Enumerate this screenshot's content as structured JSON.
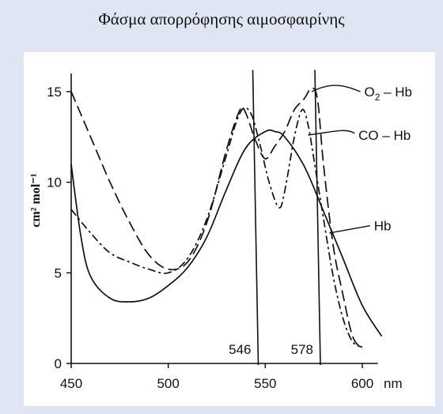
{
  "title": "Φάσμα απορρόφησης αιμοσφαιρίνης",
  "chart_data": {
    "type": "line",
    "ylabel": "cm² mol⁻¹",
    "x_unit": "nm",
    "xlim": [
      450,
      620
    ],
    "ylim": [
      0,
      16
    ],
    "x_ticks": [
      450,
      500,
      550,
      600
    ],
    "y_ticks": [
      0,
      5,
      10,
      15
    ],
    "x_tick_labels": [
      "450",
      "500",
      "550",
      "600"
    ],
    "y_tick_labels": [
      "0",
      "5",
      "10",
      "15"
    ],
    "vertical_lines": [
      {
        "x": 546,
        "label": "546"
      },
      {
        "x": 578,
        "label": "578"
      }
    ],
    "series": [
      {
        "name": "O2 – Hb",
        "label_parts": [
          "O",
          "2",
          " – Hb"
        ],
        "style": "long-dash",
        "x": [
          450,
          460,
          470,
          480,
          490,
          500,
          510,
          520,
          530,
          537,
          540,
          545,
          550,
          555,
          560,
          565,
          570,
          574,
          577,
          580,
          585,
          590,
          595,
          600
        ],
        "y": [
          15.0,
          12.5,
          10.0,
          7.8,
          6.0,
          5.2,
          5.6,
          7.8,
          11.8,
          14.0,
          13.8,
          12.3,
          11.3,
          12.0,
          12.8,
          14.0,
          14.6,
          15.2,
          14.5,
          11.0,
          6.5,
          3.8,
          1.5,
          0.8
        ]
      },
      {
        "name": "CO – Hb",
        "label_parts": [
          "CO – Hb"
        ],
        "style": "dash-dot",
        "x": [
          450,
          460,
          470,
          480,
          490,
          500,
          510,
          520,
          530,
          535,
          539,
          543,
          547,
          552,
          557,
          560,
          565,
          569,
          572,
          575,
          580,
          585,
          590,
          595,
          600
        ],
        "y": [
          8.5,
          7.2,
          6.1,
          5.6,
          5.2,
          5.0,
          5.8,
          8.0,
          11.5,
          13.3,
          14.1,
          13.7,
          12.2,
          10.0,
          8.6,
          9.5,
          12.5,
          14.0,
          13.2,
          11.3,
          8.0,
          4.8,
          2.5,
          1.2,
          0.9
        ]
      },
      {
        "name": "Hb",
        "label_parts": [
          "Hb"
        ],
        "style": "solid",
        "x": [
          450,
          455,
          460,
          470,
          480,
          490,
          500,
          510,
          520,
          530,
          540,
          550,
          555,
          560,
          570,
          580,
          590,
          600,
          610
        ],
        "y": [
          11.0,
          7.0,
          4.8,
          3.6,
          3.4,
          3.6,
          4.3,
          5.3,
          7.0,
          9.6,
          11.9,
          12.8,
          12.8,
          12.5,
          10.9,
          8.4,
          5.8,
          3.2,
          1.5
        ]
      }
    ]
  }
}
